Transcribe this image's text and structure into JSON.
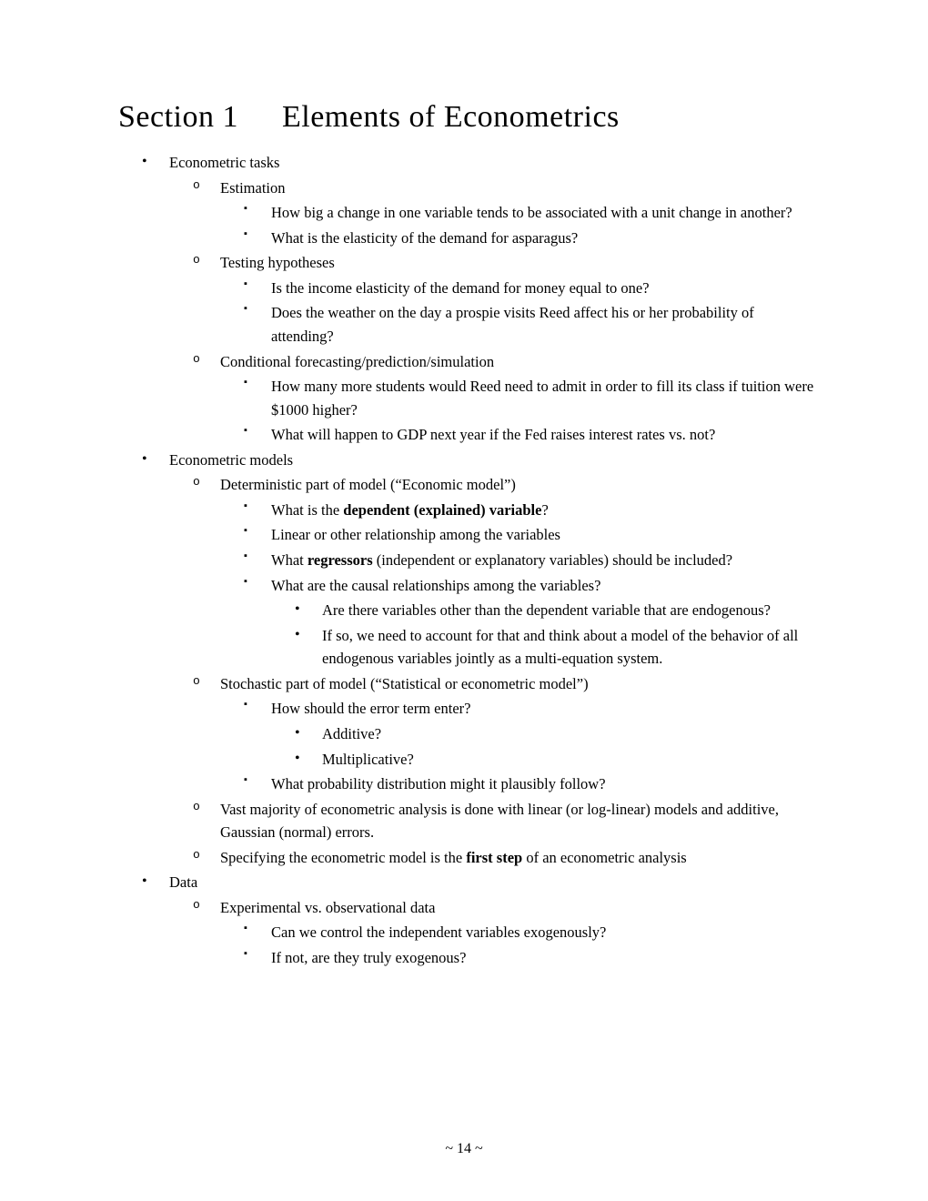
{
  "heading": {
    "section_label": "Section 1",
    "title": "Elements of Econometrics"
  },
  "page_number": "~ 14 ~",
  "typography": {
    "body_font": "Georgia / Times-like serif",
    "body_size_pt": 12,
    "heading_size_pt": 26,
    "text_color": "#000000",
    "background_color": "#ffffff"
  },
  "outline": [
    {
      "text": "Econometric tasks",
      "children": [
        {
          "text": "Estimation",
          "children": [
            {
              "text": "How big a change in one variable tends to be associated with a unit change in another?"
            },
            {
              "text": "What is the elasticity of the demand for asparagus?"
            }
          ]
        },
        {
          "text": "Testing hypotheses",
          "children": [
            {
              "text": "Is the income elasticity of the demand for money equal to one?"
            },
            {
              "text": "Does the weather on the day a prospie visits Reed affect his or her probability of attending?"
            }
          ]
        },
        {
          "text": "Conditional forecasting/prediction/simulation",
          "children": [
            {
              "text": "How many more students would Reed need to admit in order to fill its class if tuition were $1000 higher?"
            },
            {
              "text": "What will happen to GDP next year if the Fed raises interest rates vs. not?"
            }
          ]
        }
      ]
    },
    {
      "text": "Econometric models",
      "children": [
        {
          "text": "Deterministic part of model (“Economic model”)",
          "children": [
            {
              "runs": [
                {
                  "t": "What is the "
                },
                {
                  "t": "dependent (explained) variable",
                  "bold": true
                },
                {
                  "t": "?"
                }
              ]
            },
            {
              "text": "Linear or other relationship among the variables"
            },
            {
              "runs": [
                {
                  "t": "What "
                },
                {
                  "t": "regressors",
                  "bold": true
                },
                {
                  "t": " (independent or explanatory variables) should be included?"
                }
              ]
            },
            {
              "text": "What are the causal relationships among the variables?",
              "children": [
                {
                  "text": "Are there variables other than the dependent variable that are endogenous?"
                },
                {
                  "text": "If so, we need to account for that and think about a model of the behavior of all endogenous variables jointly as a multi-equation system."
                }
              ]
            }
          ]
        },
        {
          "text": "Stochastic part of model (“Statistical or econometric model”)",
          "children": [
            {
              "text": "How should the error term enter?",
              "children": [
                {
                  "text": "Additive?"
                },
                {
                  "text": "Multiplicative?"
                }
              ]
            },
            {
              "text": "What probability distribution might it plausibly follow?"
            }
          ]
        },
        {
          "text": "Vast majority of econometric analysis is done with linear (or log-linear) models and additive, Gaussian (normal) errors."
        },
        {
          "runs": [
            {
              "t": "Specifying the econometric model is the "
            },
            {
              "t": "first step",
              "bold": true
            },
            {
              "t": " of an econometric analysis"
            }
          ]
        }
      ]
    },
    {
      "text": "Data",
      "children": [
        {
          "text": "Experimental vs. observational data",
          "children": [
            {
              "text": "Can we control the independent variables exogenously?"
            },
            {
              "text": "If not, are they truly exogenous?"
            }
          ]
        }
      ]
    }
  ]
}
